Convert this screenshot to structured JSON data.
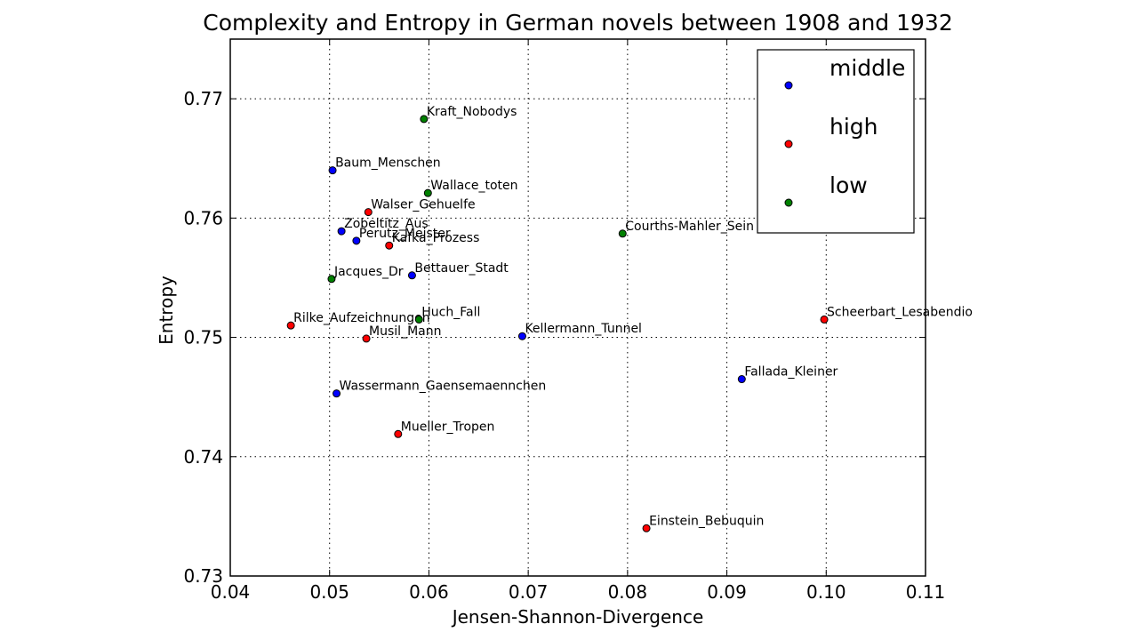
{
  "chart_data": {
    "type": "scatter",
    "title": "Complexity and Entropy in German novels between 1908 and 1932",
    "xlabel": "Jensen-Shannon-Divergence",
    "ylabel": "Entropy",
    "xlim": [
      0.04,
      0.11
    ],
    "ylim": [
      0.73,
      0.775
    ],
    "xticks": [
      0.04,
      0.05,
      0.06,
      0.07,
      0.08,
      0.09,
      0.1,
      0.11
    ],
    "xtick_labels": [
      "0.04",
      "0.05",
      "0.06",
      "0.07",
      "0.08",
      "0.09",
      "0.10",
      "0.11"
    ],
    "yticks": [
      0.73,
      0.74,
      0.75,
      0.76,
      0.77
    ],
    "ytick_labels": [
      "0.73",
      "0.74",
      "0.75",
      "0.76",
      "0.77"
    ],
    "grid": true,
    "legend_position": "top-right",
    "series": [
      {
        "name": "middle",
        "color": "#0000ff"
      },
      {
        "name": "high",
        "color": "#ff0000"
      },
      {
        "name": "low",
        "color": "#008000"
      }
    ],
    "points": [
      {
        "label": "Kraft_Nobodys",
        "x": 0.0595,
        "y": 0.7683,
        "series": "low"
      },
      {
        "label": "Baum_Menschen",
        "x": 0.0503,
        "y": 0.764,
        "series": "middle"
      },
      {
        "label": "Wallace_toten",
        "x": 0.0599,
        "y": 0.7621,
        "series": "low"
      },
      {
        "label": "Walser_Gehuelfe",
        "x": 0.0539,
        "y": 0.7605,
        "series": "high"
      },
      {
        "label": "Zobeltitz_Aus",
        "x": 0.0512,
        "y": 0.7589,
        "series": "middle"
      },
      {
        "label": "Perutz_Meister",
        "x": 0.0527,
        "y": 0.7581,
        "series": "middle"
      },
      {
        "label": "Kafka_Prozess",
        "x": 0.056,
        "y": 0.7577,
        "series": "high"
      },
      {
        "label": "Courths-Mahler_Sein",
        "x": 0.0795,
        "y": 0.7587,
        "series": "low"
      },
      {
        "label": "Jacques_Dr",
        "x": 0.0502,
        "y": 0.7549,
        "series": "low"
      },
      {
        "label": "Bettauer_Stadt",
        "x": 0.0583,
        "y": 0.7552,
        "series": "middle"
      },
      {
        "label": "Rilke_Aufzeichnungen",
        "x": 0.0461,
        "y": 0.751,
        "series": "high"
      },
      {
        "label": "Huch_Fall",
        "x": 0.059,
        "y": 0.7515,
        "series": "low"
      },
      {
        "label": "Musil_Mann",
        "x": 0.0537,
        "y": 0.7499,
        "series": "high"
      },
      {
        "label": "Kellermann_Tunnel",
        "x": 0.0694,
        "y": 0.7501,
        "series": "middle"
      },
      {
        "label": "Scheerbart_Lesabendio",
        "x": 0.0998,
        "y": 0.7515,
        "series": "high"
      },
      {
        "label": "Fallada_Kleiner",
        "x": 0.0915,
        "y": 0.7465,
        "series": "middle"
      },
      {
        "label": "Wassermann_Gaensemaennchen",
        "x": 0.0507,
        "y": 0.7453,
        "series": "middle"
      },
      {
        "label": "Mueller_Tropen",
        "x": 0.0569,
        "y": 0.7419,
        "series": "high"
      },
      {
        "label": "Einstein_Bebuquin",
        "x": 0.0819,
        "y": 0.734,
        "series": "high"
      }
    ]
  }
}
